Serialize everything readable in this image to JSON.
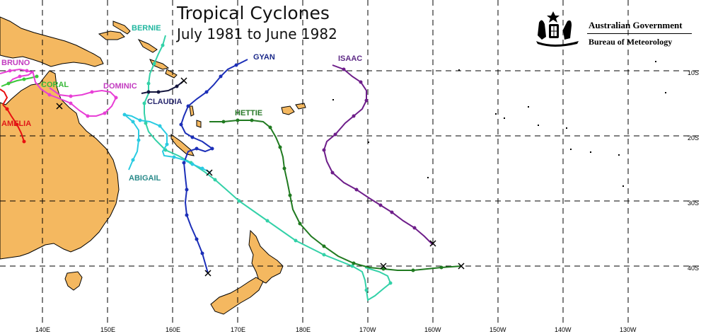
{
  "title": "Tropical Cyclones",
  "subtitle": "July 1981 to June 1982",
  "agency": {
    "government": "Australian Government",
    "bureau": "Bureau of Meteorology",
    "logo_icon": "coat-of-arms-icon"
  },
  "colors": {
    "land": "#F4B860",
    "grid": "#000000",
    "background": "#FFFFFF"
  },
  "lat_labels": [
    "10S",
    "20S",
    "30S",
    "40S"
  ],
  "lon_labels": [
    "140E",
    "150E",
    "160E",
    "170E",
    "180E",
    "170W",
    "160W",
    "150W",
    "140W",
    "130W"
  ],
  "cyclones": [
    {
      "name": "BERNIE",
      "color": "#33D1A8",
      "label_color": "#22B7A0"
    },
    {
      "name": "GYAN",
      "color": "#1C2FB8",
      "label_color": "#1C2A8A"
    },
    {
      "name": "ISAAC",
      "color": "#6E1E8A",
      "label_color": "#5E2A86"
    },
    {
      "name": "BRUNO",
      "color": "#E83FD6",
      "label_color": "#C23BC0"
    },
    {
      "name": "CORAL",
      "color": "#3CC83C",
      "label_color": "#38B838"
    },
    {
      "name": "DOMINIC",
      "color": "#E83FD6",
      "label_color": "#C23BC0"
    },
    {
      "name": "AMELIA",
      "color": "#E81010",
      "label_color": "#E01818"
    },
    {
      "name": "CLAUDIA",
      "color": "#14163E",
      "label_color": "#2A2A70"
    },
    {
      "name": "HETTIE",
      "color": "#207A20",
      "label_color": "#2A7A2A"
    },
    {
      "name": "ABIGAIL",
      "color": "#2ACBE2",
      "label_color": "#2A8A8A"
    }
  ]
}
